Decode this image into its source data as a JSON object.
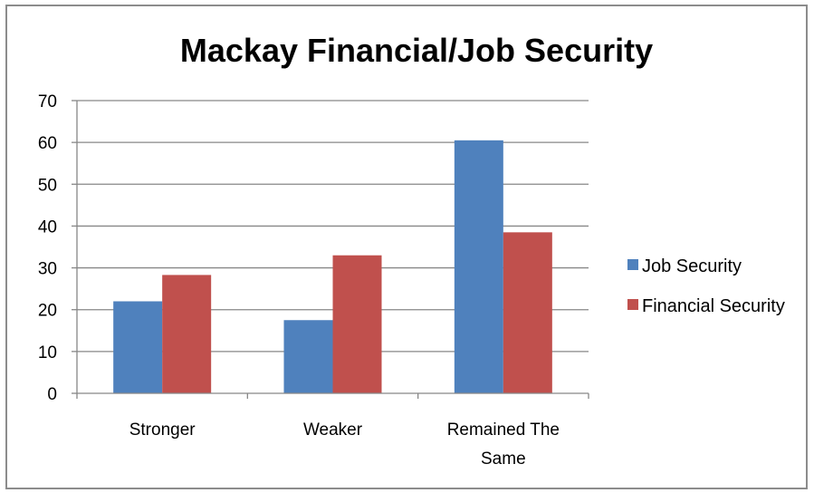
{
  "chart_data": {
    "type": "bar",
    "title": "Mackay Financial/Job Security",
    "xlabel": "",
    "ylabel": "",
    "categories": [
      [
        "Stronger"
      ],
      [
        "Weaker"
      ],
      [
        "Remained The",
        "Same"
      ]
    ],
    "series": [
      {
        "name": "Job Security",
        "color": "#4f81bd",
        "values": [
          22,
          17.5,
          60.5
        ]
      },
      {
        "name": "Financial Security",
        "color": "#c0504d",
        "values": [
          28.3,
          33,
          38.5
        ]
      }
    ],
    "ylim": [
      0,
      70
    ],
    "yticks": [
      0,
      10,
      20,
      30,
      40,
      50,
      60,
      70
    ],
    "grid": true,
    "legend_position": "right"
  }
}
